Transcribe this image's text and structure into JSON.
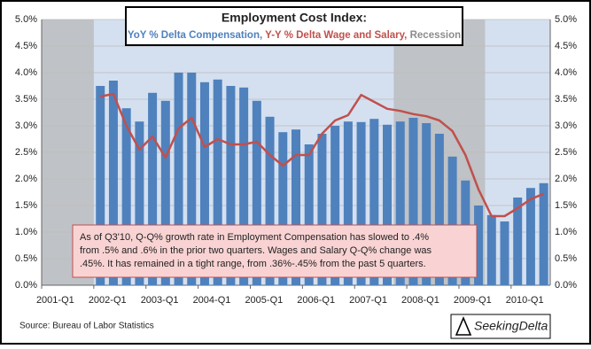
{
  "chart_data": {
    "type": "bar_line",
    "title": "Employment Cost Index:",
    "categories": [
      "2001-Q1",
      null,
      null,
      null,
      "2002-Q1",
      null,
      null,
      null,
      "2003-Q1",
      null,
      null,
      null,
      "2004-Q1",
      null,
      null,
      null,
      "2005-Q1",
      null,
      null,
      null,
      "2006-Q1",
      null,
      null,
      null,
      "2007-Q1",
      null,
      null,
      null,
      "2008-Q1",
      null,
      null,
      null,
      "2009-Q1",
      null,
      null,
      null,
      "2010-Q1",
      null,
      null
    ],
    "series": [
      {
        "name": "YoY % Delta Compensation,",
        "type": "bar",
        "color": "#4f81bd",
        "values": [
          null,
          null,
          null,
          null,
          3.75,
          3.85,
          3.33,
          3.08,
          3.62,
          3.47,
          4.0,
          4.0,
          3.82,
          3.87,
          3.75,
          3.72,
          3.47,
          3.17,
          2.88,
          2.93,
          2.65,
          2.85,
          3.0,
          3.08,
          3.07,
          3.13,
          3.02,
          3.08,
          3.15,
          3.05,
          2.85,
          2.42,
          1.97,
          1.5,
          1.32,
          1.2,
          1.65,
          1.83,
          1.92
        ]
      },
      {
        "name": "Y-Y % Delta Wage and Salary,",
        "type": "line",
        "color": "#c0504d",
        "values": [
          null,
          null,
          null,
          null,
          3.55,
          3.6,
          3.0,
          2.55,
          2.8,
          2.4,
          2.95,
          3.15,
          2.6,
          2.75,
          2.65,
          2.65,
          2.7,
          2.45,
          2.25,
          2.45,
          2.45,
          2.85,
          3.1,
          3.2,
          3.58,
          3.45,
          3.32,
          3.28,
          3.22,
          3.18,
          3.1,
          2.9,
          2.45,
          1.8,
          1.3,
          1.3,
          1.45,
          1.62,
          1.72
        ]
      }
    ],
    "recession": {
      "name": "Recession",
      "color": "#b8b8b8",
      "periods": [
        [
          "2001-Q1",
          "2001-Q4"
        ],
        [
          "2007-Q4",
          "2009-Q2"
        ]
      ]
    },
    "ylim": [
      0,
      5
    ],
    "yticks": [
      {
        "value": 0,
        "label": "0.0%"
      },
      {
        "value": 0.5,
        "label": "0.5%"
      },
      {
        "value": 1,
        "label": "1.0%"
      },
      {
        "value": 1.5,
        "label": "1.5%"
      },
      {
        "value": 2,
        "label": "2.0%"
      },
      {
        "value": 2.5,
        "label": "2.5%"
      },
      {
        "value": 3,
        "label": "3.0%"
      },
      {
        "value": 3.5,
        "label": "3.5%"
      },
      {
        "value": 4,
        "label": "4.0%"
      },
      {
        "value": 4.5,
        "label": "4.5%"
      },
      {
        "value": 5,
        "label": "5.0%"
      }
    ],
    "grid": true,
    "annotation": [
      "As of Q3'10, Q-Q% growth rate in Employment Compensation  has slowed to .4%",
      "from .5% and .6% in the prior two quarters. Wages and Salary Q-Q% change was",
      ".45%. It has remained in a tight range, from .36%-.45% from the past 5 quarters."
    ],
    "source": "Source: Bureau of Labor Statistics",
    "logo": "SeekingDelta"
  }
}
